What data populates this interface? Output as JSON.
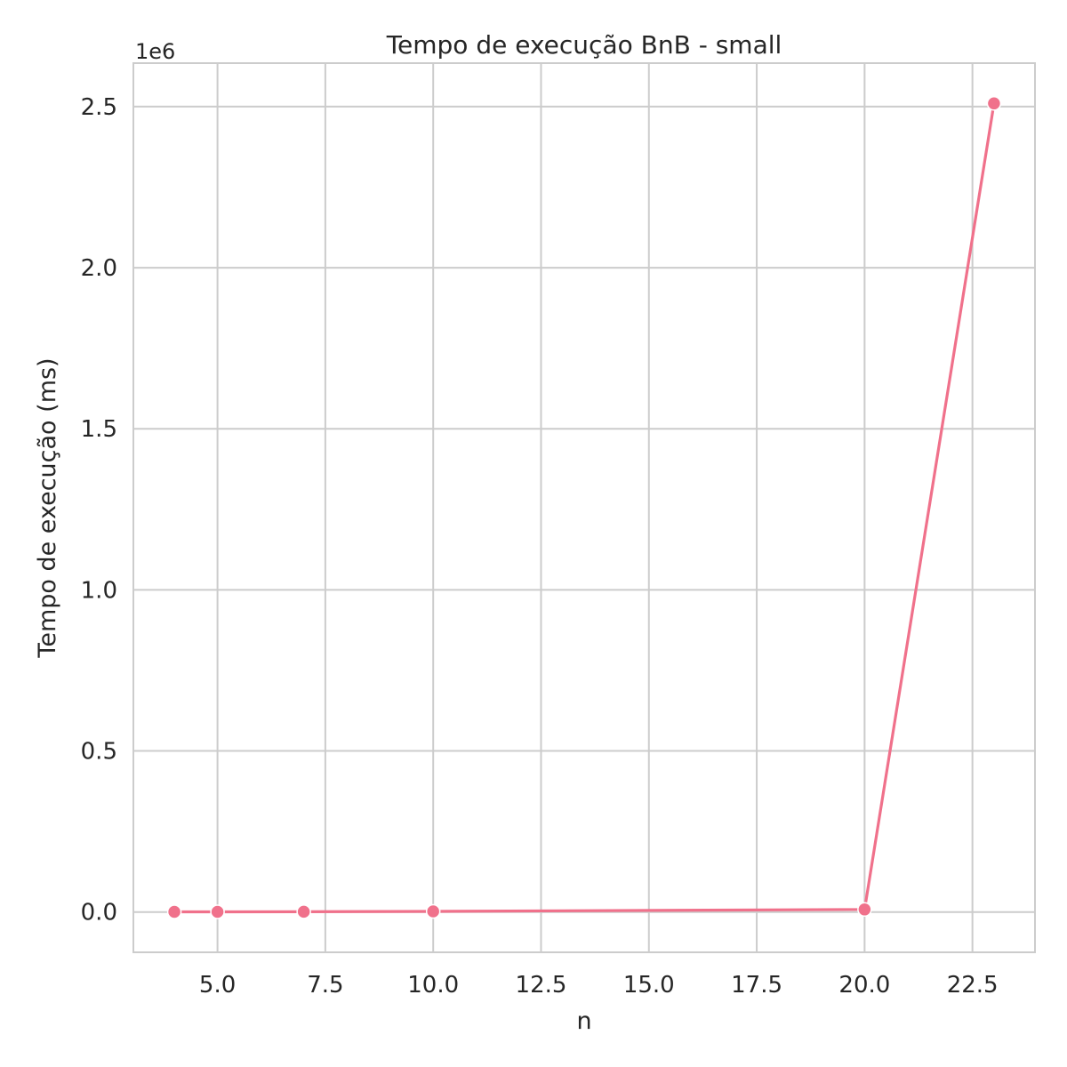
{
  "chart_data": {
    "type": "line",
    "title": "Tempo de execução BnB - small",
    "xlabel": "n",
    "ylabel": "Tempo de execução (ms)",
    "y_offset_label": "1e6",
    "x": [
      4,
      5,
      7,
      10,
      20,
      23
    ],
    "series": [
      {
        "values": [
          500,
          600,
          1000,
          2000,
          8000,
          2510000
        ]
      }
    ],
    "xlim": [
      3.05,
      23.95
    ],
    "ylim": [
      -125000,
      2635000
    ],
    "x_ticks": [
      5.0,
      7.5,
      10.0,
      12.5,
      15.0,
      17.5,
      20.0,
      22.5
    ],
    "x_tick_labels": [
      "5.0",
      "7.5",
      "10.0",
      "12.5",
      "15.0",
      "17.5",
      "20.0",
      "22.5"
    ],
    "y_ticks": [
      0,
      500000,
      1000000,
      1500000,
      2000000,
      2500000
    ],
    "y_tick_labels": [
      "0.0",
      "0.5",
      "1.0",
      "1.5",
      "2.0",
      "2.5"
    ],
    "grid": true,
    "legend": "none",
    "colors": {
      "line": "#f0718b",
      "marker_edge": "#ffffff",
      "grid": "#cccccc",
      "spine": "#cccccc",
      "text": "#262626",
      "background": "#ffffff"
    }
  }
}
